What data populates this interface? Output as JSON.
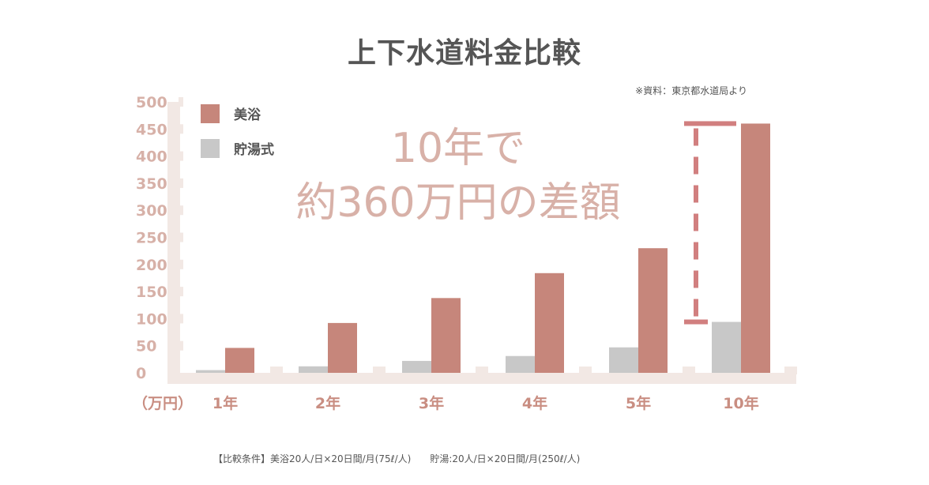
{
  "title": "上下水道料金比較",
  "source_note": "※資料：東京都水道局より",
  "conditions_note": "【比較条件】美浴20人/日×20日間/月(75ℓ/人)　　貯湯:20人/日×20日間/月(250ℓ/人)",
  "callout": {
    "line1": "10年で",
    "line2": "約360万円の差額"
  },
  "colors": {
    "beyoku": "#c6867b",
    "chotou": "#c8c8c8",
    "axis_band": "#f2e8e4",
    "tick_label": "#d7b1a8",
    "category_label": "#c98e82",
    "callout_text": "#d8b1a8",
    "marker": "#d17f7f"
  },
  "chart_data": {
    "type": "bar",
    "title": "上下水道料金比較",
    "unit_label": "（万円）",
    "ylim": [
      0,
      500
    ],
    "yticks": [
      0,
      50,
      100,
      150,
      200,
      250,
      300,
      350,
      400,
      450,
      500
    ],
    "categories": [
      "1年",
      "2年",
      "3年",
      "4年",
      "5年",
      "10年"
    ],
    "series": [
      {
        "name": "美浴",
        "values": [
          46,
          92,
          138,
          184,
          230,
          460
        ]
      },
      {
        "name": "貯湯式",
        "values": [
          5,
          12,
          22,
          31,
          47,
          94
        ]
      }
    ],
    "legend_position": "top-left",
    "grid": false
  }
}
